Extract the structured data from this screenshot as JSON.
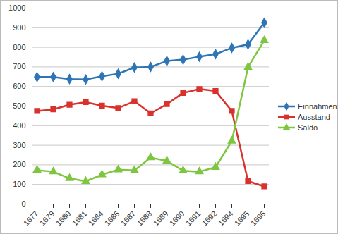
{
  "chart_data": {
    "type": "line",
    "categories": [
      "1677",
      "1679",
      "1680",
      "1681",
      "1684",
      "1686",
      "1687",
      "1688",
      "1689",
      "1690",
      "1691",
      "1692",
      "1694",
      "1695",
      "1696"
    ],
    "series": [
      {
        "name": "Einnahmen",
        "color": "#2e75b6",
        "marker": "diamond",
        "line_style": "solid",
        "values": [
          648,
          648,
          638,
          636,
          652,
          665,
          697,
          700,
          730,
          737,
          752,
          765,
          797,
          815,
          925
        ]
      },
      {
        "name": "Ausstand",
        "color": "#d9312b",
        "marker": "square",
        "line_style": "solid",
        "values": [
          475,
          483,
          507,
          520,
          502,
          490,
          525,
          463,
          510,
          567,
          587,
          577,
          475,
          117,
          90
        ]
      },
      {
        "name": "Saldo",
        "color": "#7ec63f",
        "marker": "triangle",
        "line_style": "solid",
        "values": [
          173,
          165,
          131,
          116,
          150,
          175,
          172,
          237,
          220,
          170,
          165,
          188,
          322,
          698,
          835
        ]
      }
    ],
    "ylim": [
      0,
      1000
    ],
    "yticks": [
      0,
      100,
      200,
      300,
      400,
      500,
      600,
      700,
      800,
      900,
      1000
    ],
    "grid": true,
    "legend": "right"
  }
}
